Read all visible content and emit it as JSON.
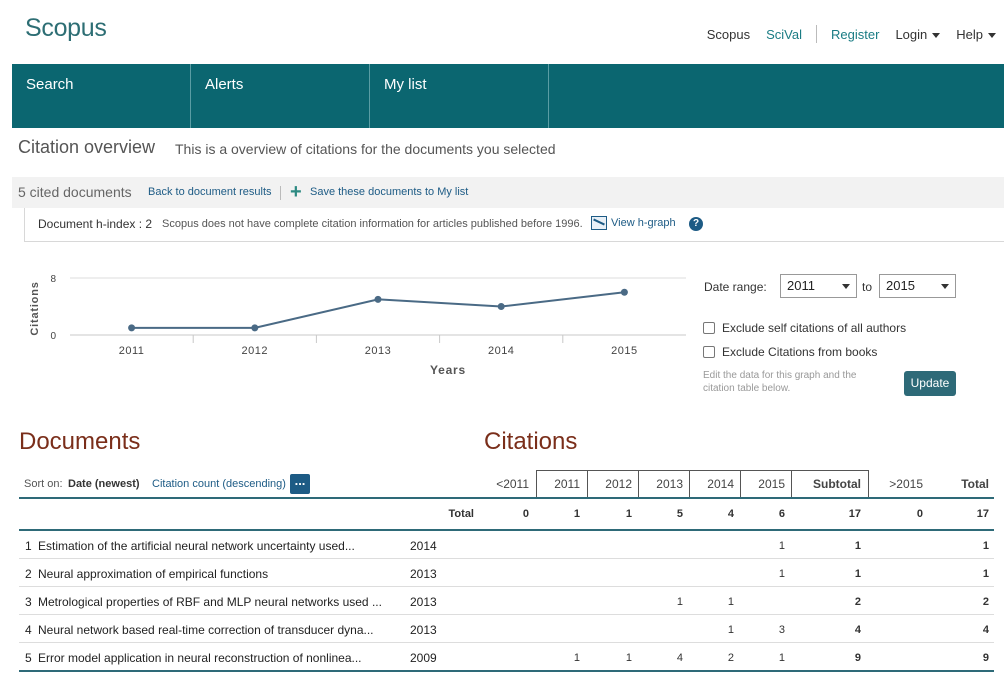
{
  "header": {
    "logo": "Scopus",
    "links": {
      "scopus": "Scopus",
      "scival": "SciVal",
      "register": "Register",
      "login": "Login",
      "help": "Help"
    }
  },
  "nav": {
    "items": [
      "Search",
      "Alerts",
      "My list"
    ]
  },
  "page": {
    "title": "Citation overview",
    "subtitle": "This is a overview of citations for the documents you selected"
  },
  "toolbar": {
    "cited": "5 cited documents",
    "back": "Back to document results",
    "save": "Save these documents to My list"
  },
  "hindex": {
    "label": "Document h-index : 2",
    "note": "Scopus does not have complete citation information for articles published before 1996.",
    "view": "View h-graph",
    "help": "?"
  },
  "chart_data": {
    "type": "line",
    "x": [
      "2011",
      "2012",
      "2013",
      "2014",
      "2015"
    ],
    "values": [
      1,
      1,
      5,
      4,
      6
    ],
    "xlabel": "Years",
    "ylabel": "Citations",
    "ylim": [
      0,
      8
    ],
    "yticks": [
      "0",
      "8"
    ],
    "color": "#4a6a85"
  },
  "controls": {
    "date_range_label": "Date range:",
    "from": "2011",
    "to_label": "to",
    "to": "2015",
    "exclude_self": "Exclude self citations of all authors",
    "exclude_books": "Exclude Citations from books",
    "note": "Edit the data for this graph and the citation table below.",
    "update": "Update"
  },
  "table": {
    "documents_heading": "Documents",
    "citations_heading": "Citations",
    "sort_on": "Sort on:",
    "sort_date": "Date (newest)",
    "sort_cc": "Citation count (descending)",
    "more": "...",
    "columns": [
      "<2011",
      "2011",
      "2012",
      "2013",
      "2014",
      "2015",
      "Subtotal",
      ">2015",
      "Total"
    ],
    "total_label": "Total",
    "totals": [
      "0",
      "1",
      "1",
      "5",
      "4",
      "6",
      "17",
      "0",
      "17"
    ],
    "rows": [
      {
        "num": "1",
        "title": "Estimation of the artificial neural network uncertainty used...",
        "year": "2014",
        "cells": [
          "",
          "",
          "",
          "",
          "",
          "1",
          "1",
          "",
          "1"
        ]
      },
      {
        "num": "2",
        "title": "Neural approximation of empirical functions",
        "year": "2013",
        "cells": [
          "",
          "",
          "",
          "",
          "",
          "1",
          "1",
          "",
          "1"
        ]
      },
      {
        "num": "3",
        "title": "Metrological properties of RBF and MLP neural networks used ...",
        "year": "2013",
        "cells": [
          "",
          "",
          "",
          "1",
          "1",
          "",
          "2",
          "",
          "2"
        ]
      },
      {
        "num": "4",
        "title": "Neural network based real-time correction of transducer dyna...",
        "year": "2013",
        "cells": [
          "",
          "",
          "",
          "",
          "1",
          "3",
          "4",
          "",
          "4"
        ]
      },
      {
        "num": "5",
        "title": "Error model application in neural reconstruction of nonlinea...",
        "year": "2009",
        "cells": [
          "",
          "1",
          "1",
          "4",
          "2",
          "1",
          "9",
          "",
          "9"
        ]
      }
    ]
  }
}
